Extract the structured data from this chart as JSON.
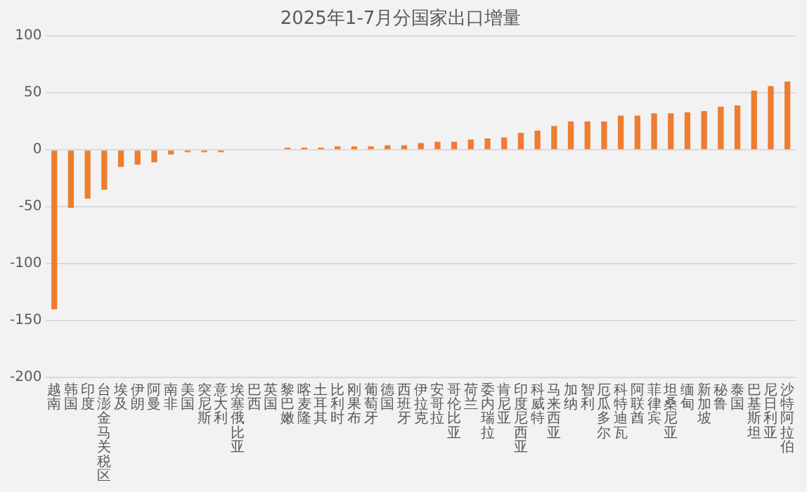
{
  "chart_data": {
    "type": "bar",
    "title": "2025年1-7月分国家出口增量",
    "categories": [
      "越南",
      "韩国",
      "印度",
      "台澎金马关税区",
      "埃及",
      "伊朗",
      "阿曼",
      "南非",
      "美国",
      "突尼斯",
      "意大利",
      "埃塞俄比亚",
      "巴西",
      "英国",
      "黎巴嫩",
      "喀麦隆",
      "土耳其",
      "比利时",
      "刚果布",
      "葡萄牙",
      "德国",
      "西班牙",
      "伊拉克",
      "安哥拉",
      "哥伦比亚",
      "荷兰",
      "委内瑞拉",
      "肯尼亚",
      "印度尼西亚",
      "科威特",
      "马来西亚",
      "加纳",
      "智利",
      "厄瓜多尔",
      "科特迪瓦",
      "阿联酋",
      "菲律宾",
      "坦桑尼亚",
      "缅甸",
      "新加坡",
      "秘鲁",
      "泰国",
      "巴基斯坦",
      "尼日利亚",
      "沙特阿拉伯"
    ],
    "values": [
      -140,
      -51,
      -43,
      -35,
      -15,
      -13,
      -11,
      -4,
      -2,
      -2,
      -2,
      0,
      0,
      0,
      2,
      2,
      2,
      3,
      3,
      3,
      4,
      4,
      6,
      7,
      7,
      9,
      10,
      11,
      15,
      17,
      21,
      25,
      25,
      25,
      30,
      30,
      32,
      32,
      33,
      34,
      38,
      39,
      52,
      56,
      60
    ],
    "color": "#ed7d31",
    "ylim": [
      -200,
      100
    ],
    "yticks": [
      -200,
      -150,
      -100,
      -50,
      0,
      50,
      100
    ],
    "grid": "y"
  }
}
